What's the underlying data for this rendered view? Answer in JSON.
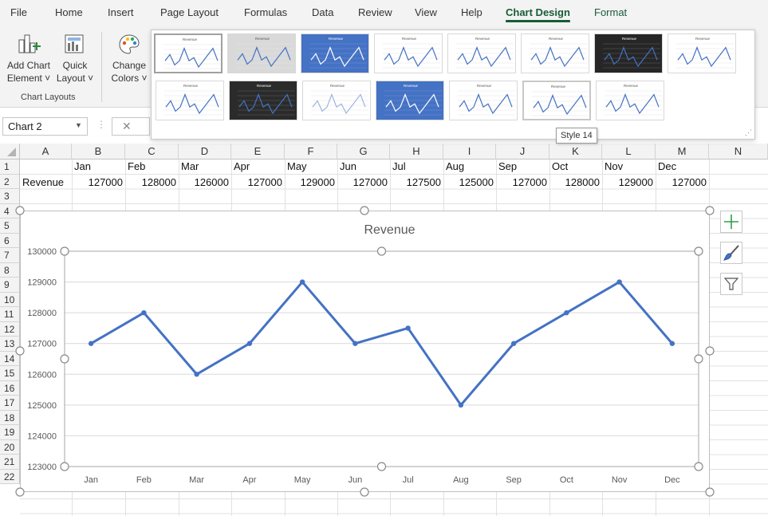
{
  "ribbon": {
    "tabs": [
      "File",
      "Home",
      "Insert",
      "Page Layout",
      "Formulas",
      "Data",
      "Review",
      "View",
      "Help",
      "Chart Design",
      "Format"
    ],
    "active_tab": "Chart Design",
    "add_chart_element": {
      "line1": "Add Chart",
      "line2": "Element ˅"
    },
    "quick_layout": {
      "line1": "Quick",
      "line2": "Layout ˅"
    },
    "change_colors": {
      "line1": "Change",
      "line2": "Colors ˅"
    },
    "group_label": "Chart Layouts"
  },
  "gallery": {
    "tooltip": "Style 14",
    "thumb_titles": [
      "Revenue",
      "Revenue",
      "Revenue",
      "Revenue",
      "Revenue",
      "Revenue",
      "Revenue",
      "Revenue",
      "Revenue",
      "Revenue",
      "Revenue",
      "Revenue",
      "Revenue",
      "Revenue",
      "Revenue"
    ]
  },
  "namebox": {
    "value": "Chart 2"
  },
  "grid": {
    "columns": [
      "A",
      "B",
      "C",
      "D",
      "E",
      "F",
      "G",
      "H",
      "I",
      "J",
      "K",
      "L",
      "M",
      "N"
    ],
    "rows": [
      "1",
      "2",
      "3",
      "4",
      "5",
      "6",
      "7",
      "8",
      "9",
      "10",
      "11",
      "12",
      "13",
      "14",
      "15",
      "16",
      "17",
      "18",
      "19",
      "20",
      "21",
      "22"
    ],
    "row1": [
      "Jan",
      "Feb",
      "Mar",
      "Apr",
      "May",
      "Jun",
      "Jul",
      "Aug",
      "Sep",
      "Oct",
      "Nov",
      "Dec"
    ],
    "row2_label": "Revenue",
    "row2": [
      "127000",
      "128000",
      "126000",
      "127000",
      "129000",
      "127000",
      "127500",
      "125000",
      "127000",
      "128000",
      "129000",
      "127000"
    ]
  },
  "chart_data": {
    "type": "line",
    "title": "Revenue",
    "categories": [
      "Jan",
      "Feb",
      "Mar",
      "Apr",
      "May",
      "Jun",
      "Jul",
      "Aug",
      "Sep",
      "Oct",
      "Nov",
      "Dec"
    ],
    "series": [
      {
        "values": [
          127000,
          128000,
          126000,
          127000,
          129000,
          127000,
          127500,
          125000,
          127000,
          128000,
          129000,
          127000
        ]
      }
    ],
    "ylim": [
      123000,
      130000
    ],
    "yticks": [
      "130000",
      "129000",
      "128000",
      "127000",
      "126000",
      "125000",
      "124000",
      "123000"
    ],
    "grid": true,
    "legend": "none",
    "line_color": "#4472c4"
  },
  "side_buttons": [
    "plus-icon",
    "brush-icon",
    "filter-icon"
  ],
  "colors": {
    "accent": "#185c37",
    "series": "#4472c4"
  }
}
